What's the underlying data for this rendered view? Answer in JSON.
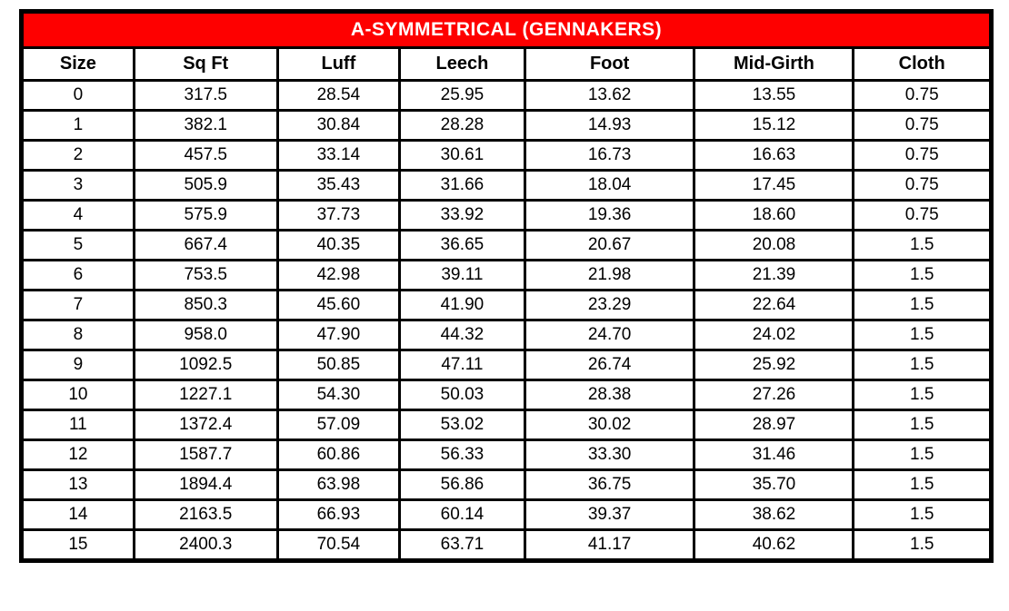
{
  "title": "A-SYMMETRICAL (GENNAKERS)",
  "colors": {
    "title_bar_bg": "#FE0000",
    "title_text": "#FFFFFF",
    "border": "#000000",
    "cell_bg": "#FFFFFF"
  },
  "chart_data": {
    "type": "table",
    "title": "A-SYMMETRICAL (GENNAKERS)",
    "columns": [
      "Size",
      "Sq Ft",
      "Luff",
      "Leech",
      "Foot",
      "Mid-Girth",
      "Cloth"
    ],
    "rows": [
      [
        "0",
        "317.5",
        "28.54",
        "25.95",
        "13.62",
        "13.55",
        "0.75"
      ],
      [
        "1",
        "382.1",
        "30.84",
        "28.28",
        "14.93",
        "15.12",
        "0.75"
      ],
      [
        "2",
        "457.5",
        "33.14",
        "30.61",
        "16.73",
        "16.63",
        "0.75"
      ],
      [
        "3",
        "505.9",
        "35.43",
        "31.66",
        "18.04",
        "17.45",
        "0.75"
      ],
      [
        "4",
        "575.9",
        "37.73",
        "33.92",
        "19.36",
        "18.60",
        "0.75"
      ],
      [
        "5",
        "667.4",
        "40.35",
        "36.65",
        "20.67",
        "20.08",
        "1.5"
      ],
      [
        "6",
        "753.5",
        "42.98",
        "39.11",
        "21.98",
        "21.39",
        "1.5"
      ],
      [
        "7",
        "850.3",
        "45.60",
        "41.90",
        "23.29",
        "22.64",
        "1.5"
      ],
      [
        "8",
        "958.0",
        "47.90",
        "44.32",
        "24.70",
        "24.02",
        "1.5"
      ],
      [
        "9",
        "1092.5",
        "50.85",
        "47.11",
        "26.74",
        "25.92",
        "1.5"
      ],
      [
        "10",
        "1227.1",
        "54.30",
        "50.03",
        "28.38",
        "27.26",
        "1.5"
      ],
      [
        "11",
        "1372.4",
        "57.09",
        "53.02",
        "30.02",
        "28.97",
        "1.5"
      ],
      [
        "12",
        "1587.7",
        "60.86",
        "56.33",
        "33.30",
        "31.46",
        "1.5"
      ],
      [
        "13",
        "1894.4",
        "63.98",
        "56.86",
        "36.75",
        "35.70",
        "1.5"
      ],
      [
        "14",
        "2163.5",
        "66.93",
        "60.14",
        "39.37",
        "38.62",
        "1.5"
      ],
      [
        "15",
        "2400.3",
        "70.54",
        "63.71",
        "41.17",
        "40.62",
        "1.5"
      ]
    ]
  }
}
